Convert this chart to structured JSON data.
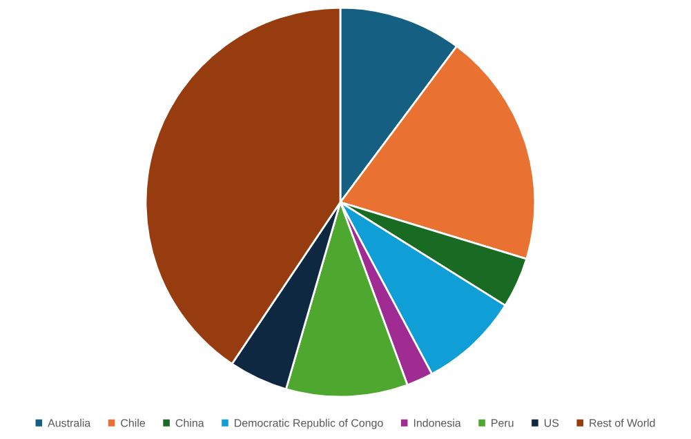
{
  "chart_data": {
    "type": "pie",
    "categories": [
      "Australia",
      "Chile",
      "China",
      "Democratic Republic of Congo",
      "Indonesia",
      "Peru",
      "US",
      "Rest of World"
    ],
    "values": [
      10.2,
      19.5,
      4.2,
      8.3,
      2.2,
      10.1,
      4.9,
      40.6
    ],
    "colors": [
      "#156082",
      "#e97132",
      "#196b24",
      "#0f9ed5",
      "#a02b93",
      "#4ea72e",
      "#0e2841",
      "#963c0f"
    ],
    "legend": "bottom"
  }
}
